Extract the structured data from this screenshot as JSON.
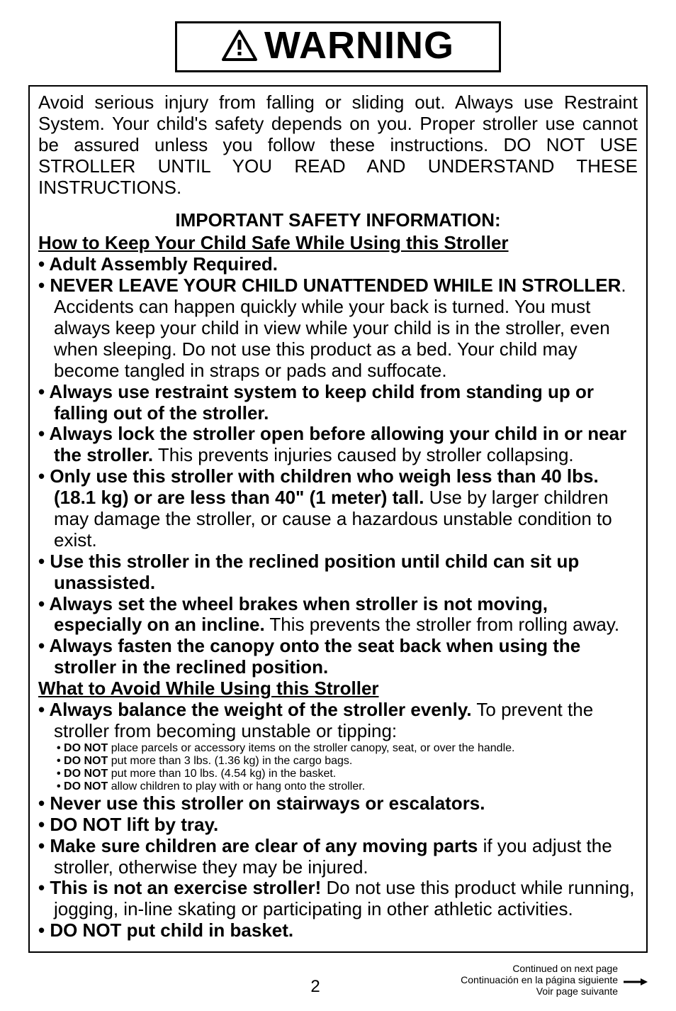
{
  "warning_label": "WARNING",
  "intro": "Avoid serious injury from falling or sliding out. Always use Restraint System. Your child's safety depends on you. Proper stroller use cannot be assured unless you follow these instructions. DO NOT USE STROLLER UNTIL YOU READ AND UNDERSTAND THESE INSTRUCTIONS.",
  "section_title": "IMPORTANT SAFETY INFORMATION:",
  "subhead1": "How to Keep Your Child Safe While Using this Stroller",
  "list1": [
    {
      "bold": "Adult Assembly Required.",
      "rest": ""
    },
    {
      "bold": "NEVER LEAVE YOUR CHILD UNATTENDED WHILE IN STROLLER",
      "rest": ". Accidents can happen quickly while your back is turned. You must always keep your child in view while your child is in the stroller, even when sleeping. Do not use this product as a bed. Your child may become tangled in straps or pads and suffocate."
    },
    {
      "bold": "Always use restraint system to keep child from standing up or falling out of the stroller.",
      "rest": ""
    },
    {
      "bold": "Always lock the stroller open before allowing your child in or near the stroller.",
      "rest": " This prevents injuries caused by stroller collapsing."
    },
    {
      "bold": "Only use this stroller with children who weigh less than 40 lbs. (18.1 kg) or are less than 40\" (1 meter) tall.",
      "rest": " Use by larger children may damage the stroller, or cause a hazardous unstable condition to exist."
    },
    {
      "bold": "Use this stroller in the reclined position until child can sit up unassisted.",
      "rest": ""
    },
    {
      "bold": "Always set the wheel brakes when stroller is not moving, especially on an incline.",
      "rest": " This prevents the stroller from rolling away."
    },
    {
      "bold": "Always fasten the canopy onto the seat back when using the stroller in the reclined position.",
      "rest": ""
    }
  ],
  "subhead2": "What to Avoid While Using this Stroller",
  "list2_item1": {
    "bold": "Always balance the weight of the stroller evenly.",
    "rest": "  To prevent the stroller from becoming unstable or tipping:"
  },
  "sublist": [
    {
      "bold": "DO NOT",
      "rest": " place parcels or accessory items on the stroller canopy, seat, or over the handle."
    },
    {
      "bold": "DO NOT",
      "rest": " put more than 3 lbs. (1.36 kg) in the cargo bags."
    },
    {
      "bold": "DO NOT",
      "rest": " put more than 10 lbs. (4.54 kg) in the basket."
    },
    {
      "bold": "DO NOT",
      "rest": " allow children to play with or hang onto the stroller."
    }
  ],
  "list2_rest": [
    {
      "bold": "Never use this stroller on stairways or escalators.",
      "rest": ""
    },
    {
      "bold": "DO NOT lift by tray.",
      "rest": ""
    },
    {
      "bold": "Make sure children are clear of any moving parts",
      "rest": " if you adjust the stroller, otherwise they may be injured."
    },
    {
      "bold": "This is not an exercise stroller!",
      "rest": "   Do not use this product while running, jogging, in-line skating or participating in other athletic activities."
    },
    {
      "bold": "DO NOT put child in basket.",
      "rest": ""
    }
  ],
  "page_number": "2",
  "continued": {
    "en": "Continued on next page",
    "es": "Continuación en la página siguiente",
    "fr": "Voir page suivante"
  }
}
